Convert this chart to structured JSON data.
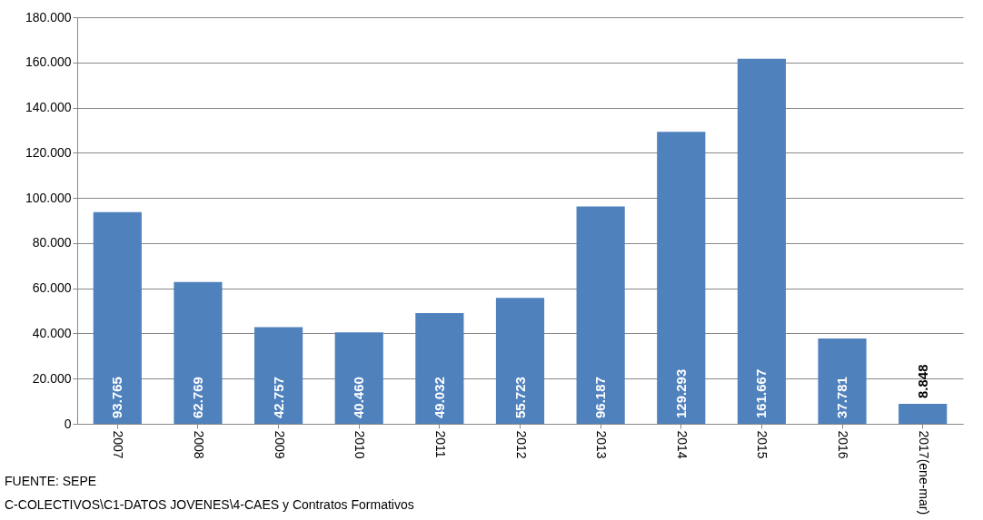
{
  "chart_data": {
    "type": "bar",
    "categories": [
      "2007",
      "2008",
      "2009",
      "2010",
      "2011",
      "2012",
      "2013",
      "2014",
      "2015",
      "2016",
      "2017(ene-mar)"
    ],
    "values": [
      93765,
      62769,
      42757,
      40460,
      49032,
      55723,
      96187,
      129293,
      161667,
      37781,
      8848
    ],
    "value_labels": [
      "93.765",
      "62.769",
      "42.757",
      "40.460",
      "49.032",
      "55.723",
      "96.187",
      "129.293",
      "161.667",
      "37.781",
      "8.848"
    ],
    "color": "#4f81bd",
    "ylim": [
      0,
      180000
    ],
    "yticks": [
      {
        "value": 0,
        "label": "0"
      },
      {
        "value": 20000,
        "label": "20.000"
      },
      {
        "value": 40000,
        "label": "40.000"
      },
      {
        "value": 60000,
        "label": "60.000"
      },
      {
        "value": 80000,
        "label": "80.000"
      },
      {
        "value": 100000,
        "label": "100.000"
      },
      {
        "value": 120000,
        "label": "120.000"
      },
      {
        "value": 140000,
        "label": "140.000"
      },
      {
        "value": 160000,
        "label": "160.000"
      },
      {
        "value": 180000,
        "label": "180.000"
      }
    ],
    "grid": "y",
    "annotations": [
      "FUENTE: SEPE",
      "C-COLECTIVOS\\C1-DATOS JOVENES\\4-CAES y Contratos Formativos"
    ]
  }
}
